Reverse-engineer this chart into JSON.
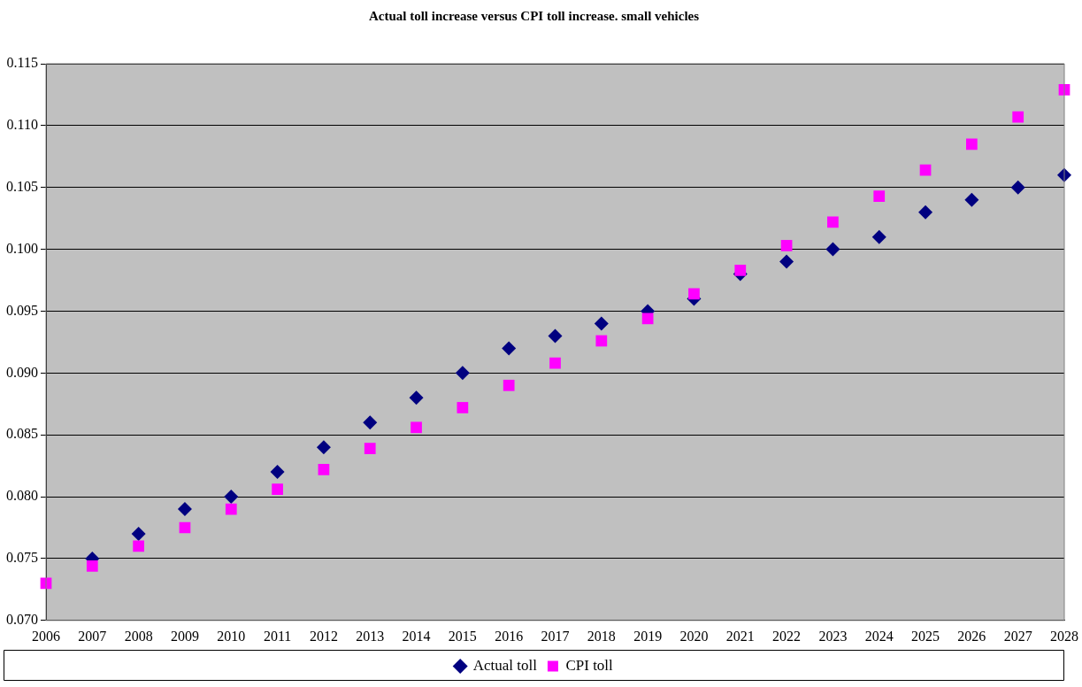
{
  "chart_data": {
    "type": "scatter",
    "title": "Actual toll increase versus CPI toll increase. small vehicles",
    "categories": [
      "2006",
      "2007",
      "2008",
      "2009",
      "2010",
      "2011",
      "2012",
      "2013",
      "2014",
      "2015",
      "2016",
      "2017",
      "2018",
      "2019",
      "2020",
      "2021",
      "2022",
      "2023",
      "2024",
      "2025",
      "2026",
      "2027",
      "2028"
    ],
    "series": [
      {
        "name": "Actual toll",
        "color": "#000080",
        "marker": "diamond",
        "values": [
          null,
          0.075,
          0.077,
          0.079,
          0.08,
          0.082,
          0.084,
          0.086,
          0.088,
          0.09,
          0.092,
          0.093,
          0.094,
          0.095,
          0.096,
          0.098,
          0.099,
          0.1,
          0.101,
          0.103,
          0.104,
          0.105,
          0.106
        ]
      },
      {
        "name": "CPI toll",
        "color": "#ff00ff",
        "marker": "square",
        "values": [
          0.073,
          0.0744,
          0.076,
          0.0775,
          0.079,
          0.0806,
          0.0822,
          0.0839,
          0.0856,
          0.0872,
          0.089,
          0.0908,
          0.0926,
          0.0944,
          0.0964,
          0.0983,
          0.1003,
          0.1022,
          0.1043,
          0.1064,
          0.1085,
          0.1107,
          0.1129
        ]
      }
    ],
    "ylim": [
      0.07,
      0.115
    ],
    "yticks": [
      {
        "value": 0.07,
        "label": "0.070"
      },
      {
        "value": 0.075,
        "label": "0.075"
      },
      {
        "value": 0.08,
        "label": "0.080"
      },
      {
        "value": 0.085,
        "label": "0.085"
      },
      {
        "value": 0.09,
        "label": "0.090"
      },
      {
        "value": 0.095,
        "label": "0.095"
      },
      {
        "value": 0.1,
        "label": "0.100"
      },
      {
        "value": 0.105,
        "label": "0.105"
      },
      {
        "value": 0.11,
        "label": "0.110"
      },
      {
        "value": 0.115,
        "label": "0.115"
      }
    ],
    "grid": "y",
    "legend": "bottom"
  }
}
